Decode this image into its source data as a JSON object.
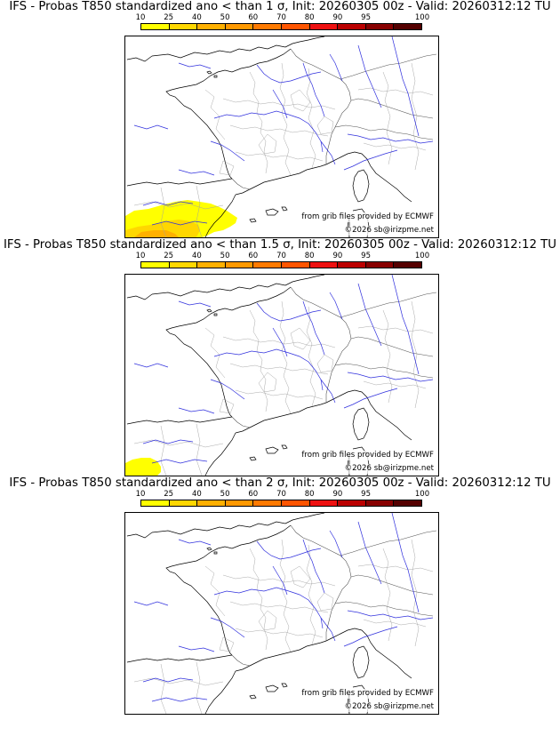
{
  "scale": {
    "labels": [
      "10",
      "25",
      "40",
      "50",
      "60",
      "70",
      "80",
      "90",
      "95",
      "100"
    ],
    "colors": [
      "#ffff00",
      "#ffd700",
      "#ffb000",
      "#ff9900",
      "#ff7a00",
      "#ff5500",
      "#ee1111",
      "#bb0000",
      "#880000",
      "#550000"
    ]
  },
  "credits": {
    "source": "from grib files provided by ECMWF",
    "copyright": "©2026 sb@irizpme.net"
  },
  "colors": {
    "coast": "#000000",
    "rivers": "#3030dd",
    "borders": "#a0a0a0",
    "prob_10": "#ffff00",
    "prob_25": "#ffd700",
    "prob_40": "#ffb000"
  },
  "panels": [
    {
      "title": "IFS - Probas T850  standardized ano < than 1 σ, Init: 20260305 00z - Valid: 20260312:12 TU",
      "threshold_sigma": "1"
    },
    {
      "title": "IFS - Probas T850  standardized ano < than 1.5 σ, Init: 20260305 00z - Valid: 20260312:12 TU",
      "threshold_sigma": "1.5"
    },
    {
      "title": "IFS - Probas T850  standardized ano < than 2 σ, Init: 20260305 00z - Valid: 20260312:12 TU",
      "threshold_sigma": "2"
    }
  ]
}
